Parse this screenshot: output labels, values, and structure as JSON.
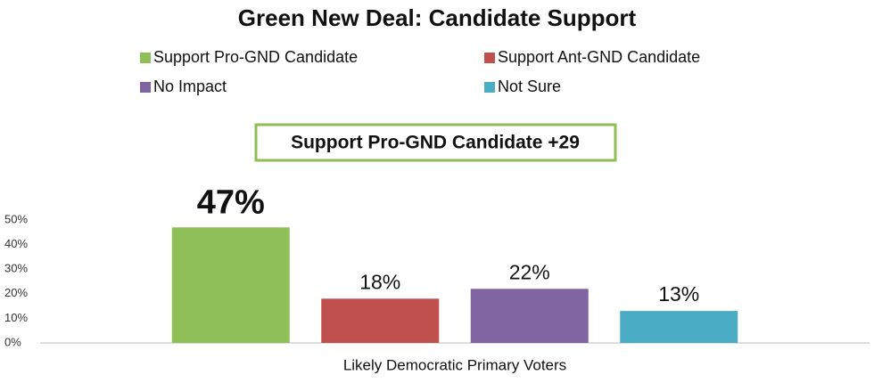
{
  "chart_data": {
    "type": "bar",
    "title": "Green New Deal: Candidate Support",
    "annotation": "Support Pro-GND Candidate  +29",
    "categories": [
      "Likely Democratic Primary Voters"
    ],
    "series": [
      {
        "name": "Support Pro-GND Candidate",
        "color": "#8fbf57",
        "values": [
          47
        ],
        "value_labels": [
          "47%"
        ]
      },
      {
        "name": "Support Ant-GND Candidate",
        "color": "#c0504d",
        "values": [
          18
        ],
        "value_labels": [
          "18%"
        ]
      },
      {
        "name": "No Impact",
        "color": "#8064a2",
        "values": [
          22
        ],
        "value_labels": [
          "22%"
        ]
      },
      {
        "name": "Not Sure",
        "color": "#4bacc6",
        "values": [
          13
        ],
        "value_labels": [
          "13%"
        ]
      }
    ],
    "ylim": [
      0,
      50
    ],
    "yticks": [
      {
        "value": 0,
        "label": "0%"
      },
      {
        "value": 10,
        "label": "10%"
      },
      {
        "value": 20,
        "label": "20%"
      },
      {
        "value": 30,
        "label": "30%"
      },
      {
        "value": 40,
        "label": "40%"
      },
      {
        "value": 50,
        "label": "50%"
      }
    ],
    "grid": false
  }
}
